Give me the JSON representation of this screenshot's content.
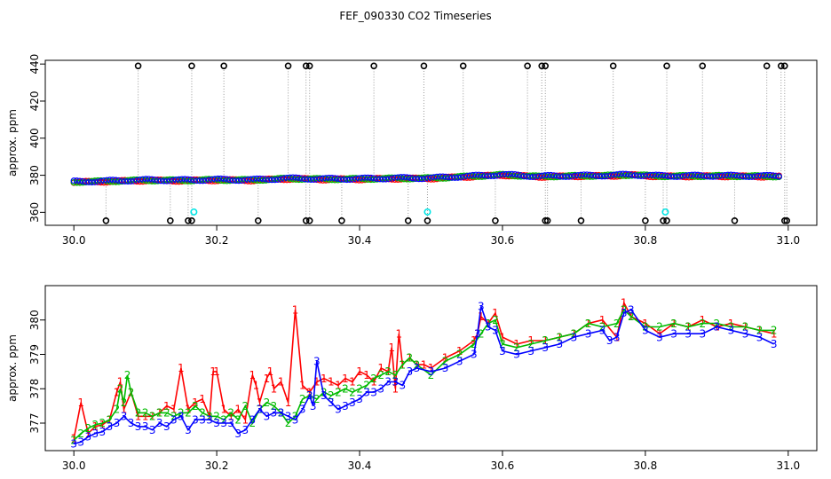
{
  "title": "FEF_090330  CO2 Timeseries",
  "colors": {
    "s1": "#ff0000",
    "s2": "#00bb00",
    "s3": "#0000ff",
    "cyan": "#00e5e5",
    "black": "#000000"
  },
  "chart_data": [
    {
      "type": "scatter",
      "ylabel": "approx. ppm",
      "xlim": [
        29.96,
        31.04
      ],
      "ylim": [
        353,
        442
      ],
      "x_ticks": [
        "30.0",
        "30.2",
        "30.4",
        "30.6",
        "30.8",
        "31.0"
      ],
      "y_ticks": [
        "360",
        "380",
        "400",
        "420",
        "440"
      ],
      "baseline": [
        [
          30.0,
          376.4
        ],
        [
          30.05,
          376.8
        ],
        [
          30.1,
          377.3
        ],
        [
          30.15,
          377.2
        ],
        [
          30.2,
          377.5
        ],
        [
          30.25,
          377.4
        ],
        [
          30.3,
          378.2
        ],
        [
          30.35,
          377.9
        ],
        [
          30.4,
          378.0
        ],
        [
          30.45,
          378.3
        ],
        [
          30.5,
          378.4
        ],
        [
          30.55,
          379.3
        ],
        [
          30.6,
          380.2
        ],
        [
          30.65,
          379.3
        ],
        [
          30.7,
          379.6
        ],
        [
          30.75,
          379.8
        ],
        [
          30.78,
          380.2
        ],
        [
          30.82,
          379.5
        ],
        [
          30.9,
          379.6
        ],
        [
          30.98,
          379.4
        ]
      ],
      "spikes_high": [
        30.09,
        30.165,
        30.21,
        30.3,
        30.325,
        30.33,
        30.42,
        30.49,
        30.545,
        30.635,
        30.655,
        30.66,
        30.755,
        30.83,
        30.88,
        30.97,
        30.99,
        30.995
      ],
      "spikes_low": [
        30.045,
        30.135,
        30.16,
        30.165,
        30.258,
        30.325,
        30.33,
        30.375,
        30.468,
        30.495,
        30.59,
        30.66,
        30.663,
        30.71,
        30.8,
        30.825,
        30.83,
        30.925,
        30.995,
        30.998
      ],
      "cyan_points": [
        [
          30.168,
          360.2
        ],
        [
          30.495,
          360.2
        ],
        [
          30.828,
          360.2
        ]
      ]
    },
    {
      "type": "line",
      "ylabel": "approx. ppm",
      "xlim": [
        29.96,
        31.04
      ],
      "ylim": [
        376.2,
        381.0
      ],
      "x_ticks": [
        "30.0",
        "30.2",
        "30.4",
        "30.6",
        "30.8",
        "31.0"
      ],
      "y_ticks": [
        "377",
        "378",
        "379",
        "380"
      ],
      "series": [
        {
          "name": "1",
          "x": [
            30.0,
            30.01,
            30.02,
            30.03,
            30.04,
            30.05,
            30.06,
            30.065,
            30.07,
            30.08,
            30.09,
            30.1,
            30.11,
            30.12,
            30.13,
            30.14,
            30.15,
            30.16,
            30.17,
            30.18,
            30.19,
            30.195,
            30.2,
            30.21,
            30.22,
            30.23,
            30.24,
            30.25,
            30.255,
            30.26,
            30.27,
            30.275,
            30.28,
            30.29,
            30.3,
            30.31,
            30.32,
            30.33,
            30.34,
            30.35,
            30.36,
            30.37,
            30.38,
            30.39,
            30.4,
            30.41,
            30.42,
            30.43,
            30.44,
            30.445,
            30.45,
            30.455,
            30.46,
            30.47,
            30.48,
            30.49,
            30.5,
            30.52,
            30.54,
            30.56,
            30.565,
            30.57,
            30.58,
            30.59,
            30.6,
            30.62,
            30.64,
            30.66,
            30.68,
            30.7,
            30.72,
            30.74,
            30.76,
            30.77,
            30.78,
            30.8,
            30.82,
            30.84,
            30.86,
            30.88,
            30.9,
            30.92,
            30.94,
            30.96,
            30.98
          ],
          "y": [
            376.55,
            377.6,
            376.7,
            376.9,
            376.95,
            377.1,
            377.9,
            378.2,
            377.4,
            377.9,
            377.2,
            377.2,
            377.2,
            377.3,
            377.5,
            377.4,
            378.6,
            377.4,
            377.6,
            377.7,
            377.2,
            378.5,
            378.5,
            377.4,
            377.2,
            377.4,
            377.1,
            378.4,
            378.1,
            377.6,
            378.3,
            378.5,
            378.0,
            378.2,
            377.6,
            380.3,
            378.1,
            377.9,
            378.2,
            378.3,
            378.2,
            378.1,
            378.3,
            378.2,
            378.5,
            378.4,
            378.2,
            378.6,
            378.5,
            379.2,
            378.0,
            379.6,
            378.7,
            378.9,
            378.7,
            378.7,
            378.6,
            378.9,
            379.1,
            379.4,
            379.6,
            380.1,
            379.9,
            380.2,
            379.5,
            379.3,
            379.4,
            379.4,
            379.5,
            379.6,
            379.9,
            380.0,
            379.5,
            380.5,
            380.1,
            379.9,
            379.6,
            379.9,
            379.8,
            380.0,
            379.8,
            379.9,
            379.8,
            379.7,
            379.6
          ]
        },
        {
          "name": "2",
          "x": [
            30.0,
            30.01,
            30.02,
            30.03,
            30.04,
            30.05,
            30.06,
            30.065,
            30.07,
            30.075,
            30.08,
            30.09,
            30.1,
            30.11,
            30.12,
            30.13,
            30.14,
            30.15,
            30.16,
            30.17,
            30.18,
            30.19,
            30.2,
            30.21,
            30.22,
            30.23,
            30.24,
            30.25,
            30.26,
            30.27,
            30.28,
            30.29,
            30.3,
            30.31,
            30.32,
            30.33,
            30.34,
            30.35,
            30.36,
            30.37,
            30.38,
            30.39,
            30.4,
            30.41,
            30.42,
            30.43,
            30.44,
            30.45,
            30.46,
            30.47,
            30.48,
            30.5,
            30.52,
            30.54,
            30.56,
            30.57,
            30.58,
            30.59,
            30.6,
            30.62,
            30.64,
            30.66,
            30.68,
            30.7,
            30.72,
            30.74,
            30.76,
            30.77,
            30.78,
            30.8,
            30.82,
            30.84,
            30.86,
            30.88,
            30.9,
            30.92,
            30.94,
            30.96,
            30.98
          ],
          "y": [
            376.5,
            376.7,
            376.85,
            376.95,
            377.0,
            377.1,
            377.4,
            378.0,
            377.6,
            378.4,
            377.9,
            377.3,
            377.3,
            377.2,
            377.3,
            377.3,
            377.2,
            377.3,
            377.3,
            377.5,
            377.3,
            377.2,
            377.2,
            377.1,
            377.3,
            377.1,
            377.5,
            377.0,
            377.4,
            377.6,
            377.5,
            377.3,
            377.0,
            377.2,
            377.7,
            377.8,
            377.7,
            377.9,
            377.8,
            377.9,
            378.0,
            377.9,
            378.0,
            378.1,
            378.3,
            378.4,
            378.5,
            378.4,
            378.7,
            378.9,
            378.7,
            378.4,
            378.8,
            379.0,
            379.3,
            379.6,
            379.9,
            380.0,
            379.3,
            379.2,
            379.3,
            379.4,
            379.5,
            379.6,
            379.9,
            379.8,
            379.9,
            380.3,
            380.1,
            379.8,
            379.8,
            379.9,
            379.8,
            379.9,
            379.9,
            379.8,
            379.8,
            379.7,
            379.7
          ]
        },
        {
          "name": "3",
          "x": [
            30.0,
            30.01,
            30.02,
            30.03,
            30.04,
            30.05,
            30.06,
            30.07,
            30.08,
            30.09,
            30.1,
            30.11,
            30.12,
            30.13,
            30.14,
            30.15,
            30.16,
            30.17,
            30.18,
            30.19,
            30.2,
            30.21,
            30.22,
            30.23,
            30.24,
            30.25,
            30.26,
            30.27,
            30.28,
            30.29,
            30.3,
            30.31,
            30.32,
            30.33,
            30.335,
            30.34,
            30.35,
            30.36,
            30.37,
            30.38,
            30.39,
            30.4,
            30.41,
            30.42,
            30.43,
            30.44,
            30.45,
            30.46,
            30.47,
            30.48,
            30.5,
            30.52,
            30.54,
            30.56,
            30.565,
            30.57,
            30.58,
            30.59,
            30.6,
            30.62,
            30.64,
            30.66,
            30.68,
            30.7,
            30.72,
            30.74,
            30.75,
            30.76,
            30.77,
            30.78,
            30.8,
            30.82,
            30.84,
            30.86,
            30.88,
            30.9,
            30.92,
            30.94,
            30.96,
            30.98
          ],
          "y": [
            376.4,
            376.45,
            376.6,
            376.7,
            376.75,
            376.9,
            377.0,
            377.2,
            377.0,
            376.9,
            376.9,
            376.8,
            377.0,
            376.9,
            377.1,
            377.2,
            376.8,
            377.1,
            377.1,
            377.1,
            377.0,
            377.0,
            377.0,
            376.7,
            376.8,
            377.1,
            377.4,
            377.2,
            377.3,
            377.3,
            377.2,
            377.1,
            377.4,
            377.8,
            377.5,
            378.8,
            377.8,
            377.6,
            377.4,
            377.5,
            377.6,
            377.7,
            377.9,
            377.9,
            378.0,
            378.2,
            378.2,
            378.1,
            378.5,
            378.6,
            378.5,
            378.6,
            378.8,
            379.0,
            379.6,
            380.4,
            379.8,
            379.7,
            379.1,
            379.0,
            379.1,
            379.2,
            379.3,
            379.5,
            379.6,
            379.7,
            379.4,
            379.5,
            380.2,
            380.3,
            379.7,
            379.5,
            379.6,
            379.6,
            379.6,
            379.8,
            379.7,
            379.6,
            379.5,
            379.3
          ]
        }
      ]
    }
  ]
}
